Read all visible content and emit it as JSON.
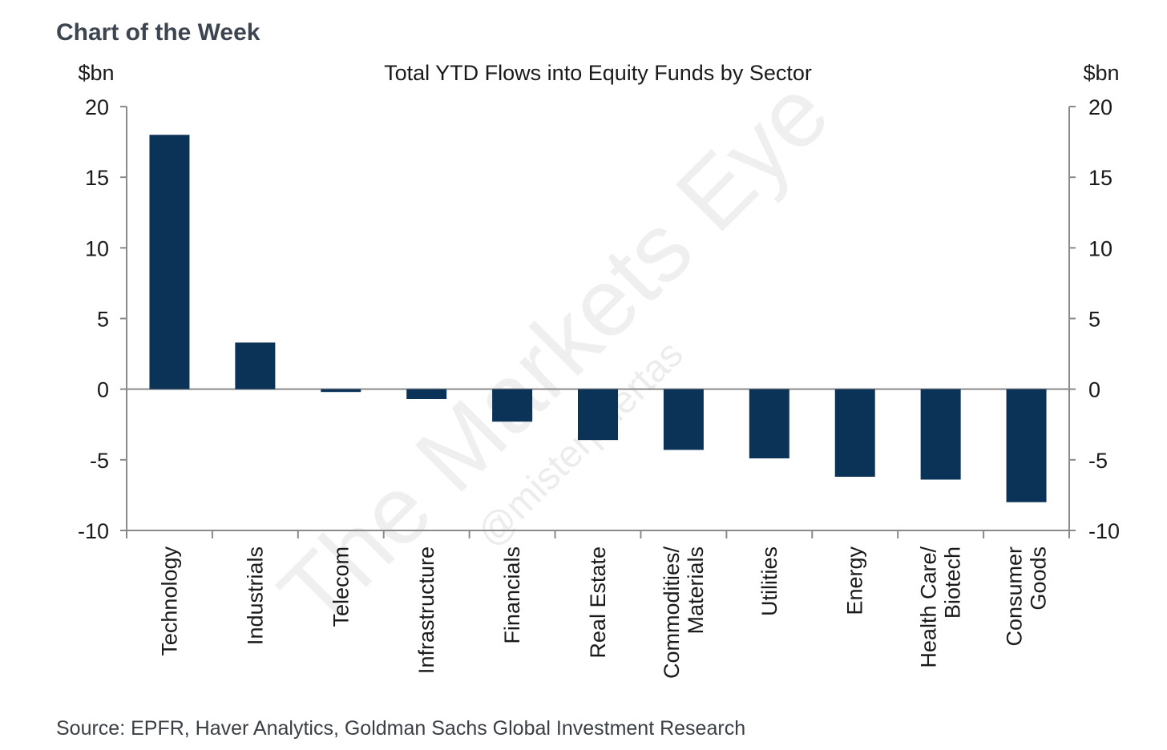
{
  "header": {
    "title": "Chart of the Week"
  },
  "source": "Source: EPFR, Haver Analytics, Goldman Sachs Global Investment Research",
  "watermark": {
    "main": "The Markets Eye",
    "sub": "@misterpuertas"
  },
  "chart_data": {
    "type": "bar",
    "title": "Total YTD Flows into Equity Funds by Sector",
    "ylabel_left": "$bn",
    "ylabel_right": "$bn",
    "ylim": [
      -10,
      20
    ],
    "yticks": [
      20,
      15,
      10,
      5,
      0,
      -5,
      -10
    ],
    "categories": [
      [
        "Technology"
      ],
      [
        "Industrials"
      ],
      [
        "Telecom"
      ],
      [
        "Infrastructure"
      ],
      [
        "Financials"
      ],
      [
        "Real Estate"
      ],
      [
        "Commodities/",
        "Materials"
      ],
      [
        "Utilities"
      ],
      [
        "Energy"
      ],
      [
        "Health Care/",
        "Biotech"
      ],
      [
        "Consumer",
        "Goods"
      ]
    ],
    "values": [
      18.0,
      3.3,
      -0.2,
      -0.7,
      -2.3,
      -3.6,
      -4.3,
      -4.9,
      -6.2,
      -6.4,
      -8.0
    ],
    "color": "#0b3358",
    "grid": false
  }
}
